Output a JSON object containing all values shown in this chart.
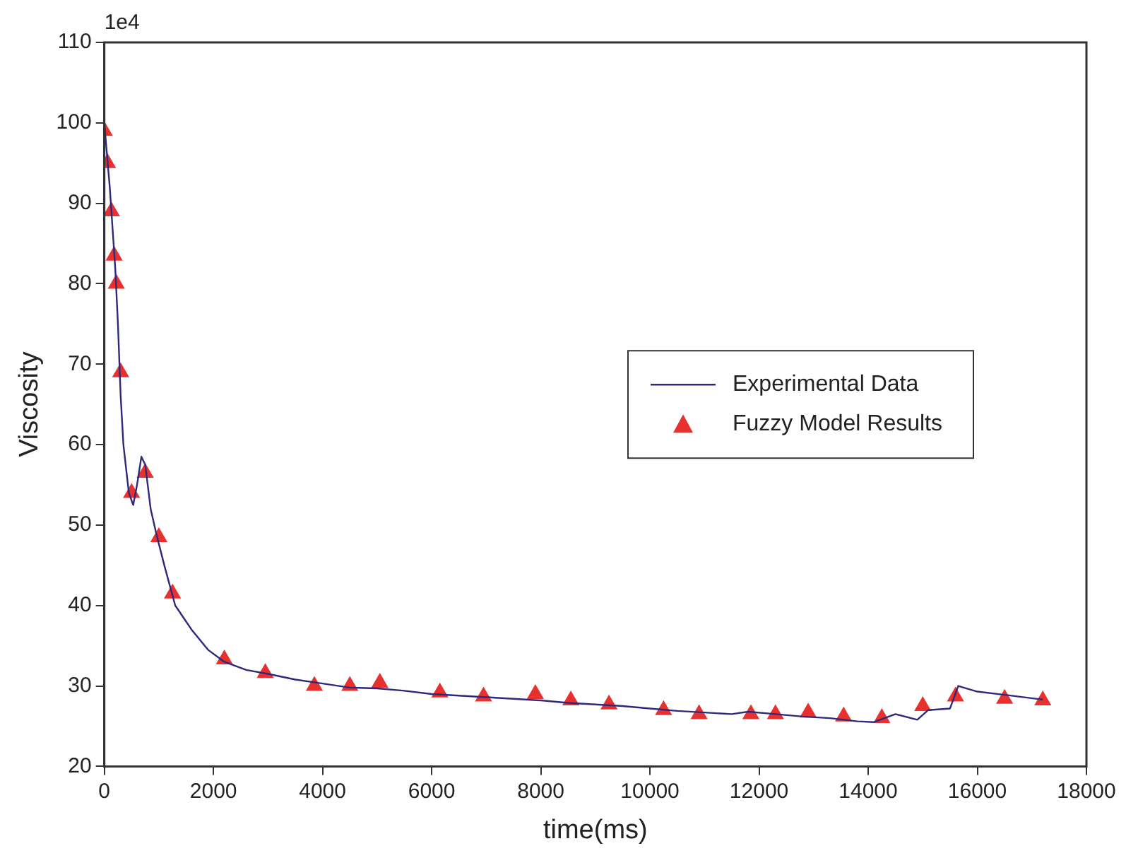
{
  "chart_data": {
    "type": "line",
    "xlabel": "time(ms)",
    "ylabel": "Viscosity",
    "annotations": [
      "1e4"
    ],
    "xlim": [
      0,
      18000
    ],
    "xticks": [
      0,
      2000,
      4000,
      6000,
      8000,
      10000,
      12000,
      14000,
      16000,
      18000
    ],
    "ylim": [
      20,
      110
    ],
    "yticks": [
      20,
      30,
      40,
      50,
      60,
      70,
      80,
      90,
      100,
      110
    ],
    "grid": false,
    "legend": "right",
    "series": [
      {
        "name": "Experimental Data",
        "color": "#2e2a7a",
        "marker": "none",
        "line_style": "solid",
        "x": [
          0,
          50,
          100,
          150,
          200,
          250,
          300,
          350,
          450,
          530,
          600,
          680,
          750,
          850,
          950,
          1100,
          1300,
          1600,
          1900,
          2200,
          2600,
          3000,
          3500,
          4000,
          4500,
          5000,
          5500,
          6000,
          6500,
          7000,
          7500,
          8000,
          8500,
          9000,
          9500,
          10000,
          10500,
          11000,
          11500,
          11800,
          12300,
          12800,
          13300,
          13800,
          14100,
          14500,
          14900,
          15100,
          15500,
          15650,
          16000,
          16500,
          17200
        ],
        "values": [
          100,
          96,
          92,
          87,
          82,
          75,
          66,
          60,
          54,
          52.5,
          55,
          58.5,
          57.5,
          52,
          49,
          45,
          40,
          37,
          34.5,
          33,
          32,
          31.5,
          30.8,
          30.3,
          29.8,
          29.7,
          29.4,
          29,
          28.8,
          28.6,
          28.4,
          28.2,
          27.9,
          27.7,
          27.5,
          27.2,
          26.9,
          26.7,
          26.5,
          26.8,
          26.5,
          26.2,
          26,
          25.6,
          25.5,
          26.5,
          25.8,
          27,
          27.2,
          30,
          29.3,
          28.9,
          28.3
        ]
      },
      {
        "name": "Fuzzy Model Results",
        "type": "scatter",
        "color": "#e8312f",
        "marker": "triangle",
        "x": [
          0,
          60,
          130,
          180,
          220,
          300,
          500,
          750,
          1000,
          1250,
          2200,
          2950,
          3850,
          4500,
          5050,
          6150,
          6950,
          7900,
          8550,
          9250,
          10250,
          10900,
          11850,
          12300,
          12900,
          13550,
          14250,
          15000,
          15600,
          16500,
          17200
        ],
        "values": [
          99,
          95,
          89,
          83.5,
          80,
          69,
          54,
          56.5,
          48.5,
          41.5,
          33.3,
          31.6,
          30,
          30,
          30.4,
          29.2,
          28.7,
          29,
          28.2,
          27.7,
          27,
          26.5,
          26.5,
          26.5,
          26.7,
          26.2,
          26,
          27.5,
          28.7,
          28.4,
          28.2
        ]
      }
    ]
  }
}
